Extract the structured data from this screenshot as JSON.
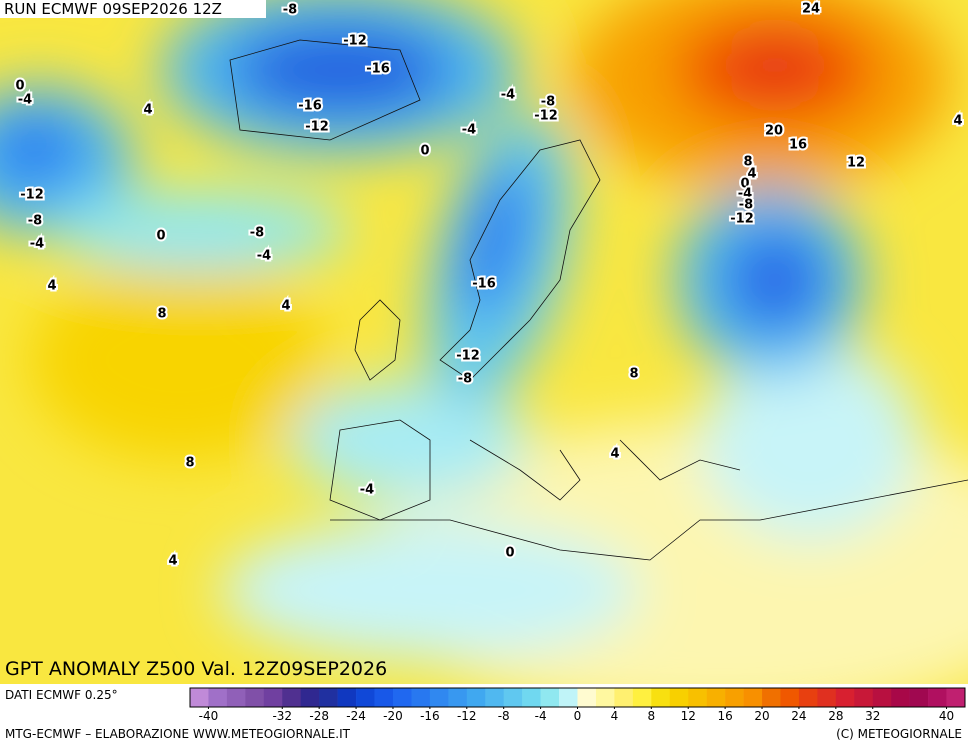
{
  "header": {
    "run": "RUN ECMWF 09SEP2026 12Z"
  },
  "map": {
    "title": "GPT ANOMALY Z500 Val. 12Z09SEP2026",
    "contour_labels": [
      -8,
      -12,
      -16,
      -16,
      -12,
      -4,
      -8,
      -12,
      -4,
      0,
      0,
      -4,
      4,
      -12,
      -8,
      -4,
      0,
      -8,
      -4,
      4,
      8,
      4,
      -16,
      -12,
      -8,
      8,
      4,
      8,
      -4,
      4,
      0,
      24,
      20,
      16,
      12,
      8,
      4,
      0,
      -4,
      -8,
      -12,
      4
    ]
  },
  "colorbar": {
    "lim": [
      -42,
      42
    ],
    "colors": [
      "#c08ad8",
      "#a070c8",
      "#9060b8",
      "#8050a8",
      "#7040a0",
      "#503090",
      "#302890",
      "#2030a0",
      "#1038c0",
      "#1048d8",
      "#1858e8",
      "#2068f0",
      "#2878f0",
      "#3088f0",
      "#3898f0",
      "#40a8f0",
      "#50b8f0",
      "#60c8f0",
      "#70d8f0",
      "#90e8f0",
      "#c0f4f8",
      "#fffbd0",
      "#fff8a0",
      "#fff070",
      "#fff040",
      "#f8e010",
      "#f8d000",
      "#f8c000",
      "#f8b000",
      "#f8a000",
      "#f89000",
      "#f07000",
      "#f05800",
      "#e84010",
      "#e03020",
      "#d82030",
      "#c81838",
      "#b81040",
      "#a80848",
      "#a00850",
      "#b01060",
      "#c02070"
    ],
    "ticks": [
      -40,
      -32,
      -28,
      -24,
      -20,
      -16,
      -12,
      -8,
      -4,
      0,
      4,
      8,
      12,
      16,
      20,
      24,
      28,
      32,
      40
    ]
  },
  "footer": {
    "data_source": "DATI ECMWF 0.25°",
    "credit": "MTG-ECMWF – ELABORAZIONE WWW.METEOGIORNALE.IT",
    "copyright": "(C) METEOGIORNALE"
  }
}
